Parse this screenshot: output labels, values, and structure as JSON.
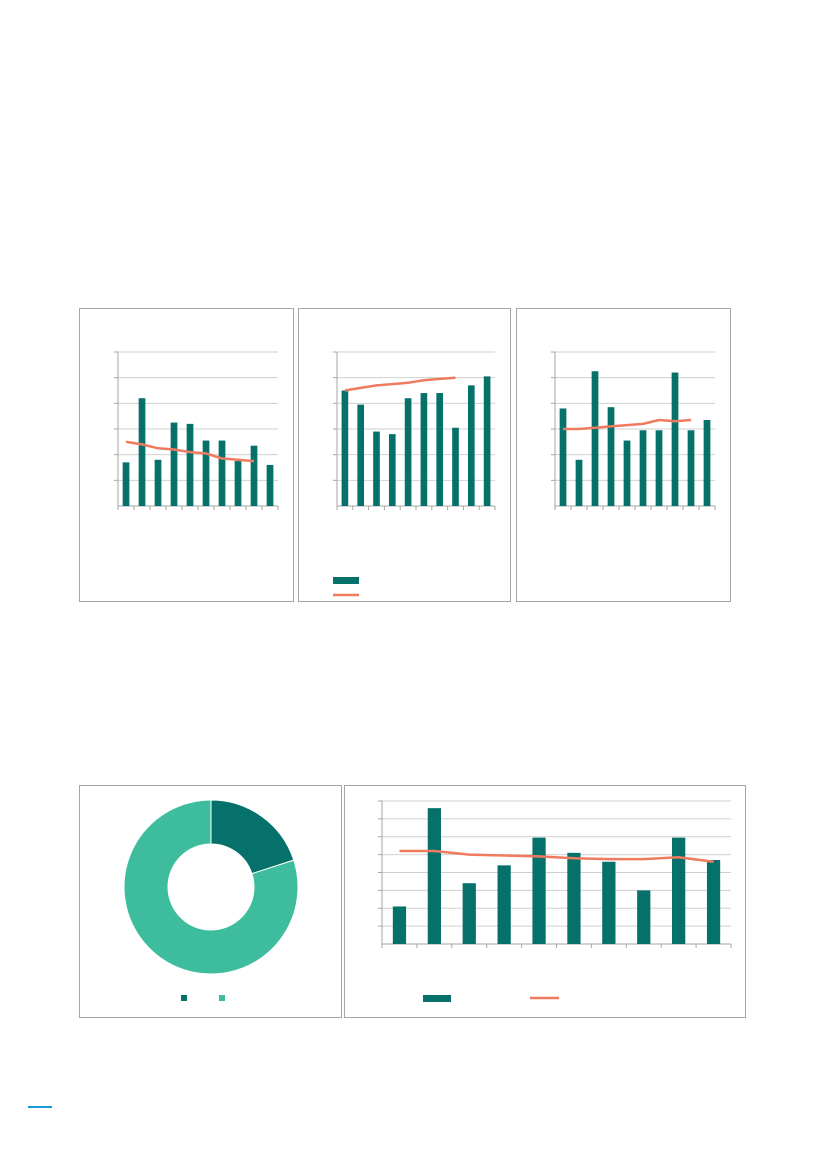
{
  "colors": {
    "bar": "#06706a",
    "line": "#f07a5f",
    "donut_dark": "#06706a",
    "donut_light": "#3dbd9d",
    "grid": "#d0d0d0",
    "axis": "#a6a6a6",
    "page_marker": "#1a9bd7"
  },
  "chart_data": [
    {
      "type": "bar",
      "legend": "none",
      "grid": true,
      "ylim": [
        0,
        6
      ],
      "values": [
        1.7,
        4.2,
        1.8,
        3.25,
        3.2,
        2.55,
        2.55,
        1.75,
        2.35,
        1.6
      ],
      "line": [
        2.5,
        2.4,
        2.25,
        2.2,
        2.1,
        2.05,
        1.85,
        1.8,
        1.75
      ]
    },
    {
      "type": "bar",
      "legend": "bottom-left",
      "grid": true,
      "ylim": [
        0,
        6
      ],
      "values": [
        4.5,
        3.95,
        2.9,
        2.8,
        4.2,
        4.4,
        4.4,
        3.05,
        4.7,
        5.05
      ],
      "line": [
        4.5,
        4.6,
        4.7,
        4.75,
        4.8,
        4.9,
        4.95,
        5.0
      ],
      "legend_items": [
        {
          "kind": "bar",
          "label": ""
        },
        {
          "kind": "line",
          "label": ""
        }
      ]
    },
    {
      "type": "bar",
      "legend": "none",
      "grid": true,
      "ylim": [
        0,
        6
      ],
      "values": [
        3.8,
        1.8,
        5.25,
        3.85,
        2.55,
        2.95,
        2.95,
        5.2,
        2.95,
        3.35
      ],
      "line": [
        3.0,
        3.0,
        3.05,
        3.1,
        3.15,
        3.2,
        3.35,
        3.3,
        3.35
      ]
    },
    {
      "type": "pie",
      "donut": true,
      "legend": "bottom",
      "slices": [
        {
          "label": "",
          "value": 20
        },
        {
          "label": "",
          "value": 80
        }
      ]
    },
    {
      "type": "bar",
      "legend": "bottom",
      "grid": true,
      "ylim": [
        0,
        8
      ],
      "values": [
        2.1,
        7.6,
        3.4,
        4.4,
        5.95,
        5.1,
        4.6,
        3.0,
        5.95,
        4.7
      ],
      "line": [
        5.2,
        5.2,
        5.0,
        4.95,
        4.9,
        4.8,
        4.75,
        4.75,
        4.85,
        4.6
      ],
      "legend_items": [
        {
          "kind": "bar",
          "label": ""
        },
        {
          "kind": "line",
          "label": ""
        }
      ]
    }
  ]
}
